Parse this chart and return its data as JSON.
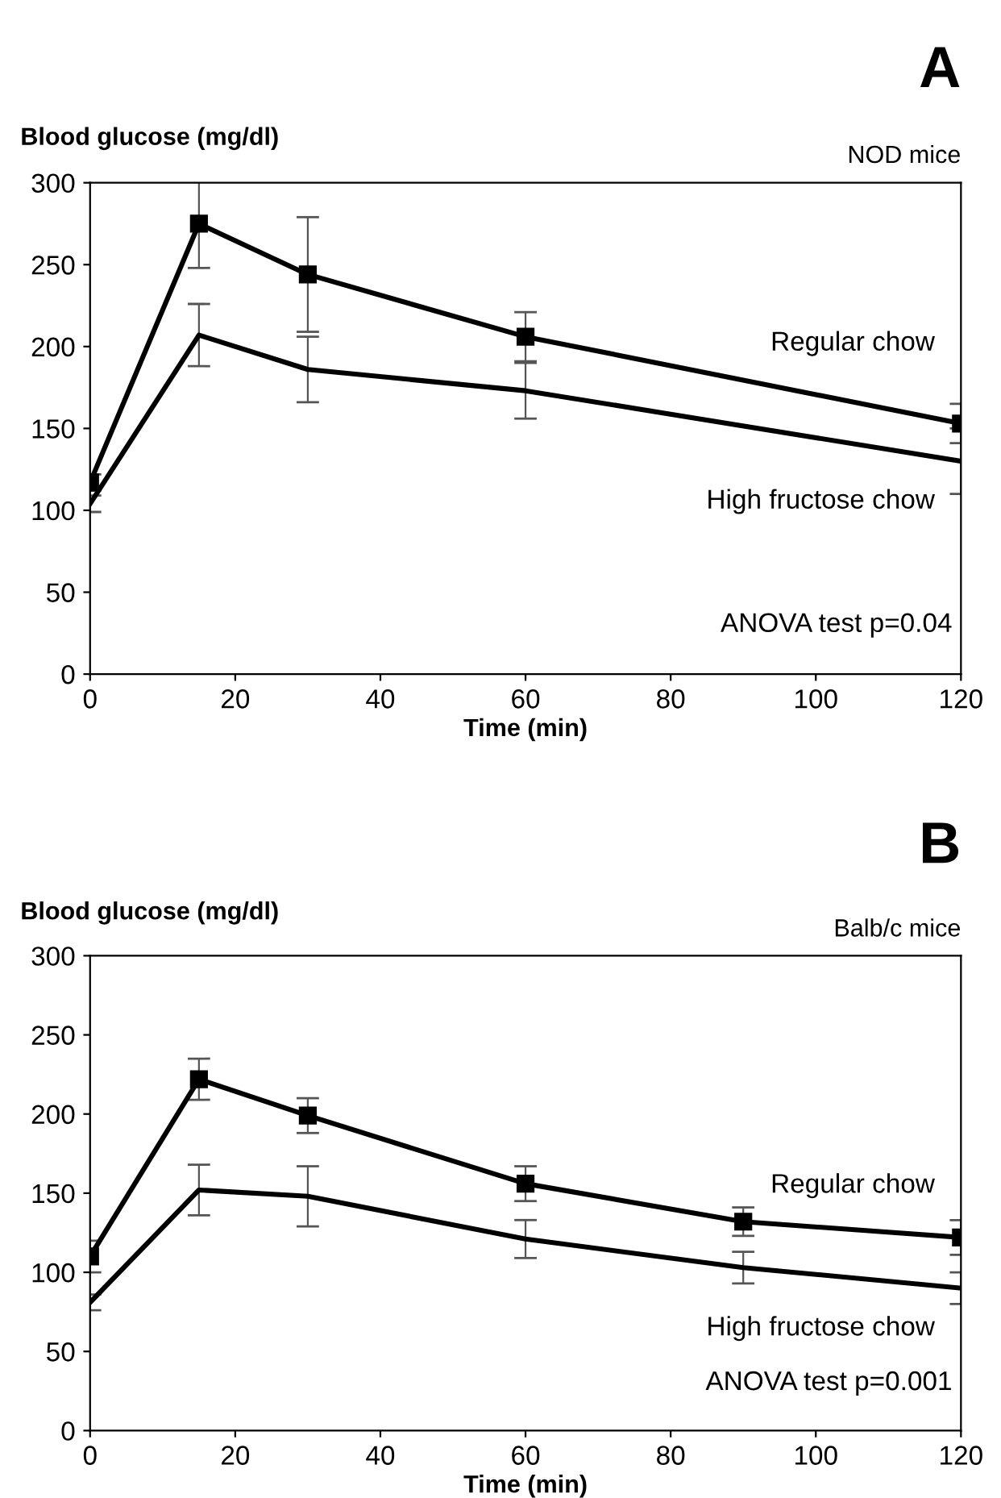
{
  "chart_data": [
    {
      "type": "line",
      "title": "A",
      "subtitle": "NOD mice",
      "ylabel": "Blood glucose (mg/dl)",
      "xlabel": "Time (min)",
      "x": [
        0,
        15,
        30,
        60,
        120
      ],
      "series": [
        {
          "name": "Regular chow",
          "color": "#000000",
          "marker": "square",
          "values": [
            117,
            275,
            244,
            206,
            153
          ],
          "errors": [
            5,
            27,
            35,
            15,
            12
          ]
        },
        {
          "name": "High fructose chow",
          "color": "#000000",
          "marker": "none",
          "values": [
            104,
            207,
            186,
            173,
            130
          ],
          "errors": [
            5,
            19,
            20,
            17,
            20
          ]
        }
      ],
      "annotations": [
        "ANOVA test p=0.04"
      ],
      "xlim": [
        0,
        120
      ],
      "xticks": [
        0,
        20,
        40,
        60,
        80,
        100,
        120
      ],
      "ylim": [
        0,
        300
      ],
      "yticks": [
        0,
        50,
        100,
        150,
        200,
        250,
        300
      ],
      "grid": false,
      "legend": false,
      "line_style": "solid"
    },
    {
      "type": "line",
      "title": "B",
      "subtitle": "Balb/c mice",
      "ylabel": "Blood glucose (mg/dl)",
      "xlabel": "Time (min)",
      "x": [
        0,
        15,
        30,
        60,
        90,
        120
      ],
      "series": [
        {
          "name": "Regular chow",
          "color": "#000000",
          "marker": "square",
          "values": [
            110,
            222,
            199,
            156,
            132,
            122
          ],
          "errors": [
            10,
            13,
            11,
            11,
            9,
            11
          ]
        },
        {
          "name": "High fructose chow",
          "color": "#000000",
          "marker": "none",
          "values": [
            81,
            152,
            148,
            121,
            103,
            90
          ],
          "errors": [
            5,
            16,
            19,
            12,
            10,
            10
          ]
        }
      ],
      "annotations": [
        "ANOVA test p=0.001"
      ],
      "xlim": [
        0,
        120
      ],
      "xticks": [
        0,
        20,
        40,
        60,
        80,
        100,
        120
      ],
      "ylim": [
        0,
        300
      ],
      "yticks": [
        0,
        50,
        100,
        150,
        200,
        250,
        300
      ],
      "grid": false,
      "legend": false,
      "line_style": "solid"
    }
  ]
}
